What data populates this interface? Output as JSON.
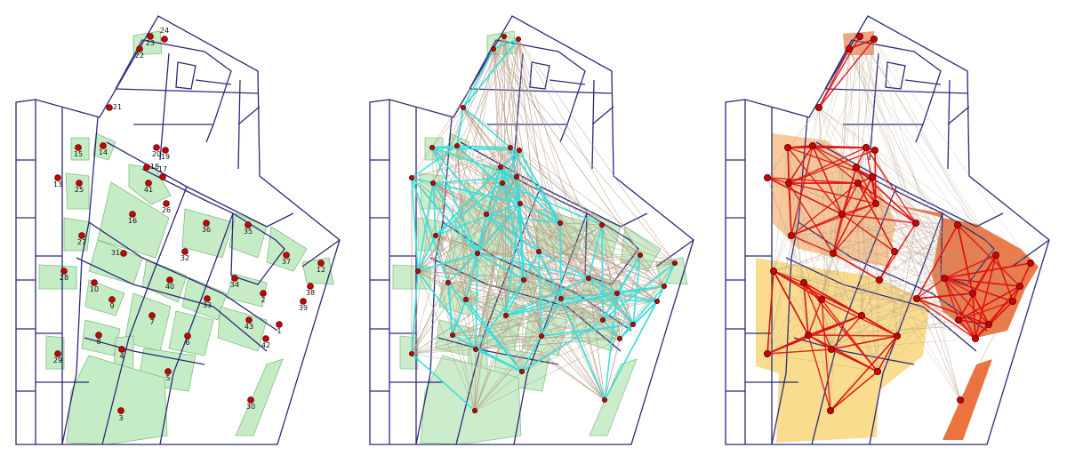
{
  "colors": {
    "street": "#2a2a7a",
    "street_grey": "#9a9a9a",
    "parcel_green": "#c6ecc6",
    "node_red": "#cc0000",
    "edge_brown": "#b59c86",
    "edge_cyan": "#33e0e0",
    "edge_red": "#e01010",
    "cluster_orange": "#e8642a",
    "cluster_peach": "#f6b87a",
    "cluster_yellow": "#f9d67a"
  },
  "panels": [
    {
      "name": "labeled-nodes-map"
    },
    {
      "name": "network-overlay-map"
    },
    {
      "name": "clustered-network-map"
    }
  ],
  "nodes": [
    {
      "id": "1"
    },
    {
      "id": "2"
    },
    {
      "id": "3"
    },
    {
      "id": "4"
    },
    {
      "id": "5"
    },
    {
      "id": "6"
    },
    {
      "id": "7"
    },
    {
      "id": "8"
    },
    {
      "id": "9"
    },
    {
      "id": "10"
    },
    {
      "id": "12"
    },
    {
      "id": "13"
    },
    {
      "id": "14"
    },
    {
      "id": "15"
    },
    {
      "id": "16"
    },
    {
      "id": "17"
    },
    {
      "id": "18"
    },
    {
      "id": "19"
    },
    {
      "id": "20"
    },
    {
      "id": "21"
    },
    {
      "id": "22"
    },
    {
      "id": "23"
    },
    {
      "id": "24"
    },
    {
      "id": "25"
    },
    {
      "id": "26"
    },
    {
      "id": "27"
    },
    {
      "id": "28"
    },
    {
      "id": "29"
    },
    {
      "id": "30"
    },
    {
      "id": "31"
    },
    {
      "id": "32"
    },
    {
      "id": "33"
    },
    {
      "id": "34"
    },
    {
      "id": "35"
    },
    {
      "id": "36"
    },
    {
      "id": "37"
    },
    {
      "id": "38"
    },
    {
      "id": "39"
    },
    {
      "id": "40"
    },
    {
      "id": "41"
    },
    {
      "id": "42"
    },
    {
      "id": "43"
    }
  ]
}
